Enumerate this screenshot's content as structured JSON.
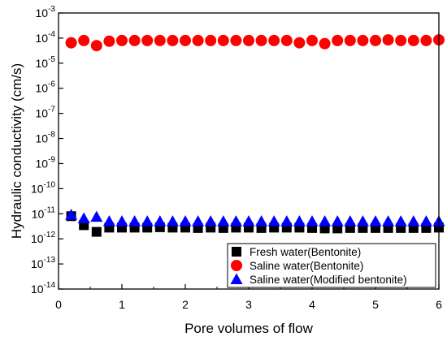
{
  "chart_data": {
    "type": "scatter",
    "title": "",
    "xlabel": "Pore volumes of flow",
    "ylabel": "Hydraulic conductivity (cm/s)",
    "xlim": [
      0,
      6
    ],
    "ylim": [
      1e-14,
      0.001
    ],
    "yscale": "log",
    "xticks": [
      0,
      1,
      2,
      3,
      4,
      5,
      6
    ],
    "yticks": [
      {
        "base": "10",
        "exp": "-3",
        "value": 0.001
      },
      {
        "base": "10",
        "exp": "-4",
        "value": 0.0001
      },
      {
        "base": "10",
        "exp": "-5",
        "value": 1e-05
      },
      {
        "base": "10",
        "exp": "-6",
        "value": 1e-06
      },
      {
        "base": "10",
        "exp": "-7",
        "value": 1e-07
      },
      {
        "base": "10",
        "exp": "-8",
        "value": 1e-08
      },
      {
        "base": "10",
        "exp": "-9",
        "value": 1e-09
      },
      {
        "base": "10",
        "exp": "-10",
        "value": 1e-10
      },
      {
        "base": "10",
        "exp": "-11",
        "value": 1e-11
      },
      {
        "base": "10",
        "exp": "-12",
        "value": 1e-12
      },
      {
        "base": "10",
        "exp": "-13",
        "value": 1e-13
      },
      {
        "base": "10",
        "exp": "-14",
        "value": 1e-14
      }
    ],
    "legend_position": "bottom-right",
    "series": [
      {
        "name": "Fresh water(Bentonite)",
        "marker": "square",
        "color": "#000000",
        "x": [
          0.2,
          0.4,
          0.6,
          0.8,
          1.0,
          1.2,
          1.4,
          1.6,
          1.8,
          2.0,
          2.2,
          2.4,
          2.6,
          2.8,
          3.0,
          3.2,
          3.4,
          3.6,
          3.8,
          4.0,
          4.2,
          4.4,
          4.6,
          4.8,
          5.0,
          5.2,
          5.4,
          5.6,
          5.8,
          6.0
        ],
        "y": [
          8e-12,
          3.5e-12,
          1.9e-12,
          2.8e-12,
          2.8e-12,
          2.8e-12,
          2.8e-12,
          2.9e-12,
          2.8e-12,
          2.8e-12,
          2.7e-12,
          2.8e-12,
          2.7e-12,
          2.8e-12,
          2.8e-12,
          2.7e-12,
          2.8e-12,
          2.8e-12,
          2.8e-12,
          2.7e-12,
          2.6e-12,
          2.6e-12,
          2.7e-12,
          2.7e-12,
          2.7e-12,
          2.7e-12,
          2.7e-12,
          2.7e-12,
          2.7e-12,
          2.8e-12
        ]
      },
      {
        "name": "Saline water(Bentonite)",
        "marker": "circle",
        "color": "#ff0000",
        "x": [
          0.2,
          0.4,
          0.6,
          0.8,
          1.0,
          1.2,
          1.4,
          1.6,
          1.8,
          2.0,
          2.2,
          2.4,
          2.6,
          2.8,
          3.0,
          3.2,
          3.4,
          3.6,
          3.8,
          4.0,
          4.2,
          4.4,
          4.6,
          4.8,
          5.0,
          5.2,
          5.4,
          5.6,
          5.8,
          6.0
        ],
        "y": [
          6.5e-05,
          8e-05,
          5e-05,
          7.5e-05,
          8e-05,
          8e-05,
          8e-05,
          8e-05,
          8e-05,
          8e-05,
          8e-05,
          8e-05,
          8e-05,
          8e-05,
          8e-05,
          8e-05,
          8e-05,
          8e-05,
          6.5e-05,
          8e-05,
          6e-05,
          8e-05,
          8e-05,
          8e-05,
          8e-05,
          8.5e-05,
          8e-05,
          8e-05,
          8e-05,
          8.5e-05
        ]
      },
      {
        "name": "Saline water(Modified bentonite)",
        "marker": "triangle",
        "color": "#0000ff",
        "x": [
          0.2,
          0.4,
          0.6,
          0.8,
          1.0,
          1.2,
          1.4,
          1.6,
          1.8,
          2.0,
          2.2,
          2.4,
          2.6,
          2.8,
          3.0,
          3.2,
          3.4,
          3.6,
          3.8,
          4.0,
          4.2,
          4.4,
          4.6,
          4.8,
          5.0,
          5.2,
          5.4,
          5.6,
          5.8,
          6.0
        ],
        "y": [
          9e-12,
          6.5e-12,
          7.5e-12,
          5e-12,
          5e-12,
          5e-12,
          5e-12,
          5e-12,
          5e-12,
          5e-12,
          5e-12,
          5e-12,
          5e-12,
          5e-12,
          5e-12,
          5e-12,
          5e-12,
          5e-12,
          5e-12,
          5e-12,
          5e-12,
          5e-12,
          5e-12,
          5e-12,
          5e-12,
          5e-12,
          5e-12,
          5e-12,
          5e-12,
          5e-12
        ]
      }
    ]
  }
}
